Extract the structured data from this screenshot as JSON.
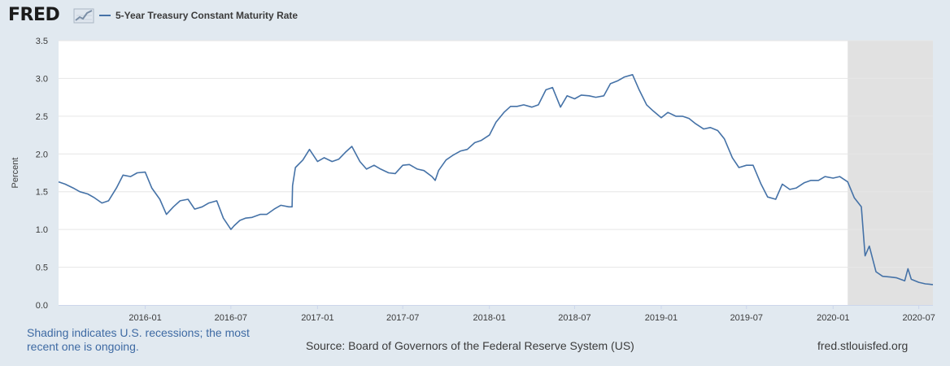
{
  "header": {
    "logo": "FRED",
    "legend_label": "5-Year Treasury Constant Maturity Rate"
  },
  "footer": {
    "note_line1": "Shading indicates U.S. recessions; the most",
    "note_line2": "recent one is ongoing.",
    "source": "Source: Board of Governors of the Federal Reserve System (US)",
    "site": "fred.stlouisfed.org"
  },
  "colors": {
    "background": "#e1e9f0",
    "plot": "#ffffff",
    "series": "#4572a7",
    "recession": "#e1e1e1",
    "grid": "#e6e6e6"
  },
  "chart_data": {
    "type": "line",
    "ylabel": "Percent",
    "ylim": [
      0,
      3.5
    ],
    "yticks": [
      "0.0",
      "0.5",
      "1.0",
      "1.5",
      "2.0",
      "2.5",
      "3.0",
      "3.5"
    ],
    "xlim": [
      "2015-07-01",
      "2020-07-31"
    ],
    "xticks": [
      "2016-01",
      "2016-07",
      "2017-01",
      "2017-07",
      "2018-01",
      "2018-07",
      "2019-01",
      "2019-07",
      "2020-01",
      "2020-07"
    ],
    "recession": {
      "start": "2020-02-01",
      "end": "2020-07-31"
    },
    "grid": true,
    "series": [
      {
        "name": "5-Year Treasury Constant Maturity Rate",
        "x": [
          "2015-07-01",
          "2015-07-15",
          "2015-08-01",
          "2015-08-15",
          "2015-09-01",
          "2015-09-15",
          "2015-10-01",
          "2015-10-15",
          "2015-11-01",
          "2015-11-15",
          "2015-12-01",
          "2015-12-15",
          "2016-01-01",
          "2016-01-15",
          "2016-02-01",
          "2016-02-15",
          "2016-03-01",
          "2016-03-15",
          "2016-04-01",
          "2016-04-15",
          "2016-05-01",
          "2016-05-15",
          "2016-06-01",
          "2016-06-15",
          "2016-07-01",
          "2016-07-08",
          "2016-07-20",
          "2016-08-01",
          "2016-08-15",
          "2016-09-01",
          "2016-09-15",
          "2016-10-01",
          "2016-10-15",
          "2016-11-01",
          "2016-11-08",
          "2016-11-09",
          "2016-11-15",
          "2016-12-01",
          "2016-12-15",
          "2017-01-01",
          "2017-01-15",
          "2017-02-01",
          "2017-02-15",
          "2017-03-01",
          "2017-03-15",
          "2017-04-01",
          "2017-04-15",
          "2017-05-01",
          "2017-05-15",
          "2017-06-01",
          "2017-06-15",
          "2017-07-01",
          "2017-07-15",
          "2017-08-01",
          "2017-08-15",
          "2017-09-01",
          "2017-09-08",
          "2017-09-15",
          "2017-10-01",
          "2017-10-15",
          "2017-11-01",
          "2017-11-15",
          "2017-12-01",
          "2017-12-15",
          "2018-01-01",
          "2018-01-15",
          "2018-02-01",
          "2018-02-15",
          "2018-03-01",
          "2018-03-15",
          "2018-04-01",
          "2018-04-15",
          "2018-05-01",
          "2018-05-15",
          "2018-06-01",
          "2018-06-15",
          "2018-07-01",
          "2018-07-15",
          "2018-08-01",
          "2018-08-15",
          "2018-09-01",
          "2018-09-15",
          "2018-10-01",
          "2018-10-15",
          "2018-11-01",
          "2018-11-15",
          "2018-12-01",
          "2018-12-15",
          "2019-01-01",
          "2019-01-15",
          "2019-02-01",
          "2019-02-15",
          "2019-03-01",
          "2019-03-15",
          "2019-04-01",
          "2019-04-15",
          "2019-05-01",
          "2019-05-15",
          "2019-06-01",
          "2019-06-15",
          "2019-07-01",
          "2019-07-15",
          "2019-08-01",
          "2019-08-15",
          "2019-09-01",
          "2019-09-15",
          "2019-10-01",
          "2019-10-15",
          "2019-11-01",
          "2019-11-15",
          "2019-12-01",
          "2019-12-15",
          "2020-01-01",
          "2020-01-15",
          "2020-02-01",
          "2020-02-15",
          "2020-03-01",
          "2020-03-09",
          "2020-03-18",
          "2020-04-01",
          "2020-04-15",
          "2020-05-01",
          "2020-05-15",
          "2020-06-01",
          "2020-06-08",
          "2020-06-15",
          "2020-07-01",
          "2020-07-15",
          "2020-07-31"
        ],
        "values": [
          1.63,
          1.6,
          1.55,
          1.5,
          1.47,
          1.42,
          1.35,
          1.38,
          1.55,
          1.72,
          1.7,
          1.75,
          1.76,
          1.55,
          1.4,
          1.2,
          1.3,
          1.38,
          1.4,
          1.27,
          1.3,
          1.35,
          1.38,
          1.15,
          1.0,
          1.05,
          1.12,
          1.15,
          1.16,
          1.2,
          1.2,
          1.27,
          1.32,
          1.3,
          1.3,
          1.58,
          1.82,
          1.92,
          2.06,
          1.9,
          1.95,
          1.9,
          1.93,
          2.02,
          2.1,
          1.9,
          1.8,
          1.85,
          1.8,
          1.75,
          1.74,
          1.85,
          1.86,
          1.8,
          1.78,
          1.7,
          1.65,
          1.78,
          1.92,
          1.98,
          2.04,
          2.06,
          2.15,
          2.18,
          2.25,
          2.42,
          2.55,
          2.63,
          2.63,
          2.65,
          2.62,
          2.65,
          2.85,
          2.88,
          2.62,
          2.77,
          2.73,
          2.78,
          2.77,
          2.75,
          2.77,
          2.93,
          2.97,
          3.02,
          3.05,
          2.85,
          2.65,
          2.57,
          2.48,
          2.55,
          2.5,
          2.5,
          2.47,
          2.4,
          2.33,
          2.35,
          2.31,
          2.2,
          1.95,
          1.82,
          1.85,
          1.85,
          1.6,
          1.43,
          1.4,
          1.6,
          1.53,
          1.55,
          1.62,
          1.65,
          1.65,
          1.7,
          1.68,
          1.7,
          1.63,
          1.42,
          1.3,
          0.65,
          0.78,
          0.44,
          0.38,
          0.37,
          0.36,
          0.32,
          0.48,
          0.34,
          0.3,
          0.28,
          0.27
        ]
      }
    ]
  }
}
